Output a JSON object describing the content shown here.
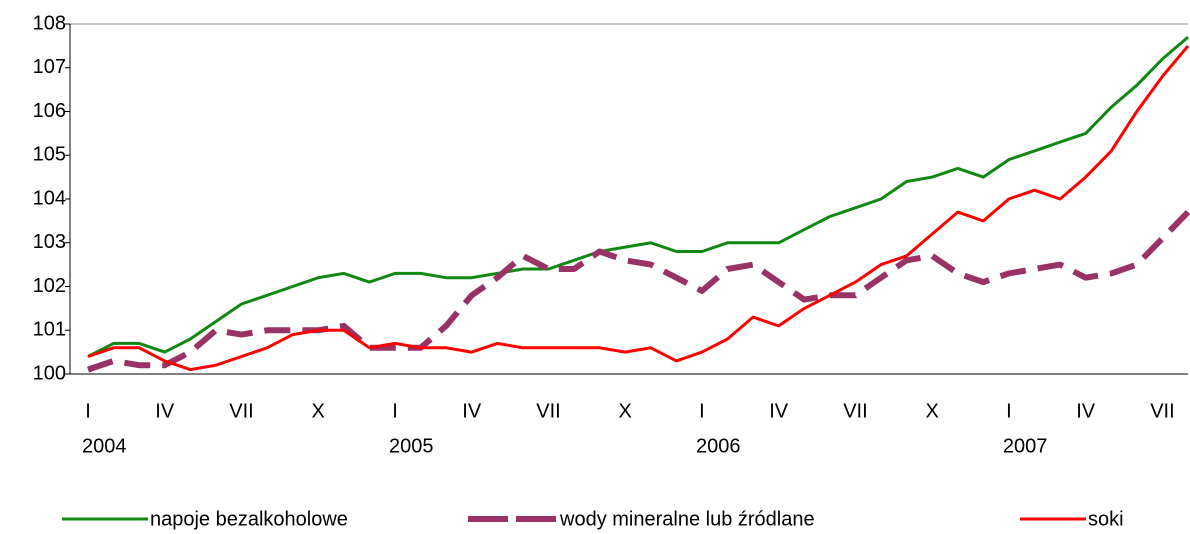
{
  "chart_data": {
    "type": "line",
    "categories": [
      "I",
      null,
      null,
      "IV",
      null,
      null,
      "VII",
      null,
      null,
      "X",
      null,
      null,
      "I",
      null,
      null,
      "IV",
      null,
      null,
      "VII",
      null,
      null,
      "X",
      null,
      null,
      "I",
      null,
      null,
      "IV",
      null,
      null,
      "VII",
      null,
      null,
      "X",
      null,
      null,
      "I",
      null,
      null,
      "IV",
      null,
      null,
      "VII",
      null
    ],
    "year_labels": [
      "2004",
      null,
      null,
      null,
      null,
      null,
      null,
      null,
      null,
      null,
      null,
      null,
      "2005",
      null,
      null,
      null,
      null,
      null,
      null,
      null,
      null,
      null,
      null,
      null,
      "2006",
      null,
      null,
      null,
      null,
      null,
      null,
      null,
      null,
      null,
      null,
      null,
      "2007",
      null,
      null,
      null,
      null,
      null,
      null,
      null
    ],
    "series": [
      {
        "name": "napoje bezalkoholowe",
        "color": "#118811",
        "dashed": false,
        "values": [
          100.4,
          100.7,
          100.7,
          100.5,
          100.8,
          101.2,
          101.6,
          101.8,
          102.0,
          102.2,
          102.3,
          102.1,
          102.3,
          102.3,
          102.2,
          102.2,
          102.3,
          102.4,
          102.4,
          102.6,
          102.8,
          102.9,
          103.0,
          102.8,
          102.8,
          103.0,
          103.0,
          103.0,
          103.3,
          103.6,
          103.8,
          104.0,
          104.4,
          104.5,
          104.7,
          104.5,
          104.9,
          105.1,
          105.3,
          105.5,
          106.1,
          106.6,
          107.2,
          107.7
        ]
      },
      {
        "name": "wody mineralne lub źródlane",
        "color": "#993366",
        "dashed": true,
        "values": [
          100.1,
          100.3,
          100.2,
          100.2,
          100.5,
          101.0,
          100.9,
          101.0,
          101.0,
          101.0,
          101.1,
          100.6,
          100.6,
          100.6,
          101.1,
          101.8,
          102.2,
          102.7,
          102.4,
          102.4,
          102.8,
          102.6,
          102.5,
          102.2,
          101.9,
          102.4,
          102.5,
          102.1,
          101.7,
          101.8,
          101.8,
          102.2,
          102.6,
          102.7,
          102.3,
          102.1,
          102.3,
          102.4,
          102.5,
          102.2,
          102.3,
          102.5,
          103.1,
          103.7
        ]
      },
      {
        "name": "soki",
        "color": "#ff0000",
        "dashed": false,
        "values": [
          100.4,
          100.6,
          100.6,
          100.3,
          100.1,
          100.2,
          100.4,
          100.6,
          100.9,
          101.0,
          101.0,
          100.6,
          100.7,
          100.6,
          100.6,
          100.5,
          100.7,
          100.6,
          100.6,
          100.6,
          100.6,
          100.5,
          100.6,
          100.3,
          100.5,
          100.8,
          101.3,
          101.1,
          101.5,
          101.8,
          102.1,
          102.5,
          102.7,
          103.2,
          103.7,
          103.5,
          104.0,
          104.2,
          104.0,
          104.5,
          105.1,
          106.0,
          106.8,
          107.5
        ]
      }
    ],
    "ylim": [
      100,
      108
    ],
    "yticks": [
      100,
      101,
      102,
      103,
      104,
      105,
      106,
      107,
      108
    ],
    "grid": false
  }
}
